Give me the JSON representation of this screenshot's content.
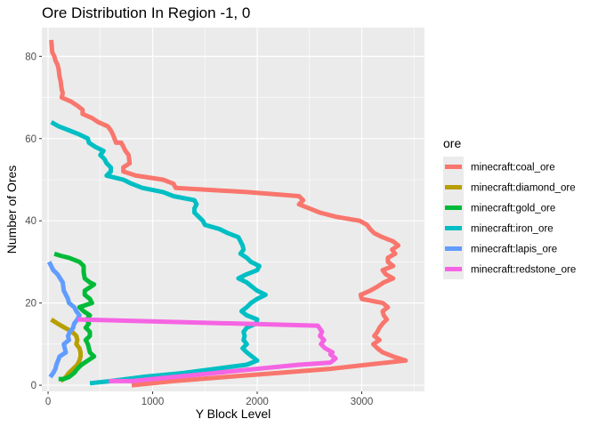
{
  "chart_data": {
    "type": "line",
    "title": "Ore Distribution In Region -1, 0",
    "xlabel": "Y Block Level",
    "ylabel": "Number of Ores",
    "xlim": [
      -60,
      3600
    ],
    "ylim": [
      -1.5,
      87
    ],
    "x_ticks": [
      0,
      1000,
      2000,
      3000
    ],
    "x_tick_labels": [
      "0",
      "1000",
      "2000",
      "3000"
    ],
    "y_ticks": [
      0,
      20,
      40,
      60,
      80
    ],
    "y_tick_labels": [
      "0",
      "20",
      "40",
      "60",
      "80"
    ],
    "grid": true,
    "legend_position": "right",
    "legend_title": "ore",
    "series": [
      {
        "name": "minecraft:coal_ore",
        "color": "#F8766D",
        "points": [
          [
            30,
            84
          ],
          [
            40,
            81
          ],
          [
            60,
            80
          ],
          [
            70,
            79
          ],
          [
            90,
            78
          ],
          [
            100,
            77
          ],
          [
            110,
            75
          ],
          [
            120,
            74
          ],
          [
            130,
            72
          ],
          [
            140,
            71
          ],
          [
            130,
            70
          ],
          [
            220,
            69
          ],
          [
            280,
            68
          ],
          [
            330,
            67
          ],
          [
            330,
            66
          ],
          [
            420,
            65
          ],
          [
            480,
            64
          ],
          [
            570,
            63
          ],
          [
            600,
            62
          ],
          [
            620,
            61
          ],
          [
            650,
            59
          ],
          [
            700,
            59
          ],
          [
            740,
            57
          ],
          [
            770,
            56
          ],
          [
            780,
            54
          ],
          [
            720,
            53
          ],
          [
            720,
            52
          ],
          [
            840,
            51
          ],
          [
            1100,
            50
          ],
          [
            1200,
            49
          ],
          [
            1220,
            48
          ],
          [
            1900,
            47
          ],
          [
            2400,
            46
          ],
          [
            2440,
            45
          ],
          [
            2400,
            44
          ],
          [
            2500,
            43
          ],
          [
            2600,
            42
          ],
          [
            2750,
            41
          ],
          [
            2980,
            40
          ],
          [
            3050,
            39
          ],
          [
            3080,
            38
          ],
          [
            3120,
            37
          ],
          [
            3200,
            36
          ],
          [
            3300,
            35
          ],
          [
            3350,
            34
          ],
          [
            3290,
            33
          ],
          [
            3320,
            32
          ],
          [
            3250,
            31
          ],
          [
            3250,
            30
          ],
          [
            3300,
            29
          ],
          [
            3200,
            28
          ],
          [
            3230,
            27
          ],
          [
            3300,
            26
          ],
          [
            3210,
            25
          ],
          [
            3150,
            24
          ],
          [
            3080,
            23
          ],
          [
            2990,
            22
          ],
          [
            3000,
            21
          ],
          [
            3200,
            20
          ],
          [
            3250,
            19
          ],
          [
            3200,
            18
          ],
          [
            3210,
            17
          ],
          [
            3240,
            16
          ],
          [
            3200,
            15
          ],
          [
            3170,
            14
          ],
          [
            3150,
            13
          ],
          [
            3120,
            12
          ],
          [
            3170,
            11
          ],
          [
            3110,
            10
          ],
          [
            3150,
            9
          ],
          [
            3200,
            8
          ],
          [
            3300,
            7
          ],
          [
            3420,
            6
          ],
          [
            3050,
            5
          ],
          [
            2700,
            4
          ],
          [
            2200,
            3
          ],
          [
            1700,
            2
          ],
          [
            1200,
            1
          ],
          [
            800,
            0
          ]
        ]
      },
      {
        "name": "minecraft:diamond_ore",
        "color": "#B79F00",
        "points": [
          [
            30,
            16
          ],
          [
            90,
            15
          ],
          [
            160,
            14
          ],
          [
            230,
            13
          ],
          [
            270,
            12
          ],
          [
            280,
            11
          ],
          [
            270,
            10
          ],
          [
            300,
            9
          ],
          [
            310,
            8
          ],
          [
            310,
            7
          ],
          [
            300,
            6
          ],
          [
            280,
            5
          ],
          [
            240,
            4
          ],
          [
            200,
            3
          ],
          [
            170,
            2
          ],
          [
            120,
            1
          ]
        ]
      },
      {
        "name": "minecraft:gold_ore",
        "color": "#00BA38",
        "points": [
          [
            60,
            32
          ],
          [
            120,
            31.5
          ],
          [
            200,
            31
          ],
          [
            300,
            30
          ],
          [
            340,
            29
          ],
          [
            340,
            27.5
          ],
          [
            350,
            26
          ],
          [
            400,
            25
          ],
          [
            440,
            24.5
          ],
          [
            350,
            23
          ],
          [
            350,
            22
          ],
          [
            400,
            21
          ],
          [
            420,
            20
          ],
          [
            300,
            19
          ],
          [
            340,
            18
          ],
          [
            400,
            17
          ],
          [
            370,
            16
          ],
          [
            390,
            15
          ],
          [
            360,
            14
          ],
          [
            400,
            13
          ],
          [
            400,
            12
          ],
          [
            360,
            11
          ],
          [
            380,
            10
          ],
          [
            390,
            9
          ],
          [
            400,
            8
          ],
          [
            440,
            7
          ],
          [
            380,
            6
          ],
          [
            320,
            5
          ],
          [
            280,
            4
          ],
          [
            250,
            3
          ],
          [
            200,
            2
          ],
          [
            150,
            1.5
          ],
          [
            100,
            1.5
          ]
        ]
      },
      {
        "name": "minecraft:iron_ore",
        "color": "#00BFC4",
        "points": [
          [
            30,
            64
          ],
          [
            100,
            63
          ],
          [
            200,
            62
          ],
          [
            300,
            61
          ],
          [
            380,
            60
          ],
          [
            390,
            59
          ],
          [
            450,
            58
          ],
          [
            530,
            57
          ],
          [
            500,
            56
          ],
          [
            540,
            55
          ],
          [
            560,
            54
          ],
          [
            600,
            53
          ],
          [
            600,
            52
          ],
          [
            560,
            51
          ],
          [
            720,
            50
          ],
          [
            800,
            49
          ],
          [
            900,
            48
          ],
          [
            1100,
            47
          ],
          [
            1200,
            46
          ],
          [
            1400,
            45
          ],
          [
            1420,
            44
          ],
          [
            1400,
            43
          ],
          [
            1400,
            42
          ],
          [
            1480,
            40
          ],
          [
            1500,
            39
          ],
          [
            1640,
            38
          ],
          [
            1720,
            37
          ],
          [
            1820,
            36
          ],
          [
            1840,
            35
          ],
          [
            1860,
            34
          ],
          [
            1870,
            33
          ],
          [
            1840,
            32
          ],
          [
            1900,
            31
          ],
          [
            1940,
            30
          ],
          [
            2020,
            29
          ],
          [
            2000,
            28
          ],
          [
            1900,
            27
          ],
          [
            1820,
            26
          ],
          [
            1900,
            25
          ],
          [
            1950,
            24
          ],
          [
            2000,
            23
          ],
          [
            2080,
            22
          ],
          [
            2000,
            21
          ],
          [
            1940,
            20
          ],
          [
            1900,
            19
          ],
          [
            1850,
            18
          ],
          [
            1900,
            17
          ],
          [
            2000,
            16
          ],
          [
            1990,
            15
          ],
          [
            1900,
            14
          ],
          [
            1870,
            13
          ],
          [
            1880,
            12
          ],
          [
            1870,
            11
          ],
          [
            1900,
            10
          ],
          [
            1860,
            9
          ],
          [
            1900,
            8
          ],
          [
            1950,
            7
          ],
          [
            2000,
            6
          ],
          [
            1900,
            5
          ],
          [
            1600,
            4
          ],
          [
            1300,
            3
          ],
          [
            900,
            2
          ],
          [
            600,
            1
          ],
          [
            400,
            0.5
          ]
        ]
      },
      {
        "name": "minecraft:lapis_ore",
        "color": "#619CFF",
        "points": [
          [
            10,
            30
          ],
          [
            50,
            28
          ],
          [
            90,
            27
          ],
          [
            140,
            25
          ],
          [
            150,
            23
          ],
          [
            190,
            21
          ],
          [
            200,
            20
          ],
          [
            250,
            19
          ],
          [
            270,
            18
          ],
          [
            300,
            17
          ],
          [
            280,
            16
          ],
          [
            250,
            15
          ],
          [
            240,
            14
          ],
          [
            210,
            13
          ],
          [
            190,
            12
          ],
          [
            200,
            11
          ],
          [
            150,
            10
          ],
          [
            160,
            9
          ],
          [
            170,
            8
          ],
          [
            110,
            7
          ],
          [
            80,
            5
          ],
          [
            70,
            4
          ],
          [
            50,
            3
          ],
          [
            20,
            2
          ]
        ]
      },
      {
        "name": "minecraft:redstone_ore",
        "color": "#F564E3",
        "points": [
          [
            280,
            16
          ],
          [
            2580,
            14.5
          ],
          [
            2620,
            13
          ],
          [
            2600,
            12
          ],
          [
            2640,
            11
          ],
          [
            2610,
            10
          ],
          [
            2650,
            9
          ],
          [
            2720,
            8
          ],
          [
            2700,
            7.5
          ],
          [
            2750,
            6.5
          ],
          [
            2700,
            5.5
          ],
          [
            2400,
            5
          ],
          [
            2000,
            4
          ],
          [
            1600,
            3
          ],
          [
            1200,
            2
          ],
          [
            800,
            1
          ],
          [
            580,
            1
          ]
        ]
      }
    ]
  }
}
